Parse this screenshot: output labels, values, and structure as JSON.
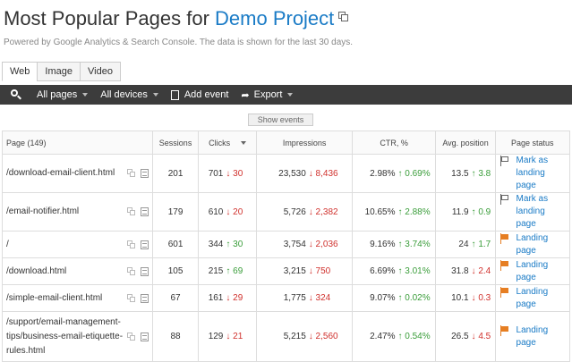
{
  "header": {
    "title_prefix": "Most Popular Pages for ",
    "project_name": "Demo Project",
    "subtitle": "Powered by Google Analytics & Search Console. The data is shown for the last 30 days."
  },
  "tabs": [
    {
      "label": "Web",
      "active": true
    },
    {
      "label": "Image",
      "active": false
    },
    {
      "label": "Video",
      "active": false
    }
  ],
  "toolbar": {
    "pages_filter": "All pages",
    "devices_filter": "All devices",
    "add_event": "Add event",
    "export": "Export"
  },
  "show_events_label": "Show events",
  "table": {
    "columns": [
      "Page (149)",
      "Sessions",
      "Clicks",
      "Impressions",
      "CTR, %",
      "Avg. position",
      "Page status"
    ],
    "rows": [
      {
        "page": "/download-email-client.html",
        "sessions": "201",
        "clicks": "701",
        "clicks_delta": "↓ 30",
        "clicks_dir": "down",
        "impressions": "23,530",
        "impr_delta": "↓ 8,436",
        "impr_dir": "down",
        "ctr": "2.98%",
        "ctr_delta": "↑ 0.69%",
        "ctr_dir": "up",
        "pos": "13.5",
        "pos_delta": "↑ 3.8",
        "pos_dir": "up",
        "status": "Mark as landing page",
        "landing": false
      },
      {
        "page": "/email-notifier.html",
        "sessions": "179",
        "clicks": "610",
        "clicks_delta": "↓ 20",
        "clicks_dir": "down",
        "impressions": "5,726",
        "impr_delta": "↓ 2,382",
        "impr_dir": "down",
        "ctr": "10.65%",
        "ctr_delta": "↑ 2.88%",
        "ctr_dir": "up",
        "pos": "11.9",
        "pos_delta": "↑ 0.9",
        "pos_dir": "up",
        "status": "Mark as landing page",
        "landing": false
      },
      {
        "page": "/",
        "sessions": "601",
        "clicks": "344",
        "clicks_delta": "↑ 30",
        "clicks_dir": "up",
        "impressions": "3,754",
        "impr_delta": "↓ 2,036",
        "impr_dir": "down",
        "ctr": "9.16%",
        "ctr_delta": "↑ 3.74%",
        "ctr_dir": "up",
        "pos": "24",
        "pos_delta": "↑ 1.7",
        "pos_dir": "up",
        "status": "Landing page",
        "landing": true
      },
      {
        "page": "/download.html",
        "sessions": "105",
        "clicks": "215",
        "clicks_delta": "↑ 69",
        "clicks_dir": "up",
        "impressions": "3,215",
        "impr_delta": "↓ 750",
        "impr_dir": "down",
        "ctr": "6.69%",
        "ctr_delta": "↑ 3.01%",
        "ctr_dir": "up",
        "pos": "31.8",
        "pos_delta": "↓ 2.4",
        "pos_dir": "down",
        "status": "Landing page",
        "landing": true
      },
      {
        "page": "/simple-email-client.html",
        "sessions": "67",
        "clicks": "161",
        "clicks_delta": "↓ 29",
        "clicks_dir": "down",
        "impressions": "1,775",
        "impr_delta": "↓ 324",
        "impr_dir": "down",
        "ctr": "9.07%",
        "ctr_delta": "↑ 0.02%",
        "ctr_dir": "up",
        "pos": "10.1",
        "pos_delta": "↓ 0.3",
        "pos_dir": "down",
        "status": "Landing page",
        "landing": true
      },
      {
        "page": "/support/email-management-tips/business-email-etiquette-rules.html",
        "sessions": "88",
        "clicks": "129",
        "clicks_delta": "↓ 21",
        "clicks_dir": "down",
        "impressions": "5,215",
        "impr_delta": "↓ 2,560",
        "impr_dir": "down",
        "ctr": "2.47%",
        "ctr_delta": "↑ 0.54%",
        "ctr_dir": "up",
        "pos": "26.5",
        "pos_delta": "↓ 4.5",
        "pos_dir": "down",
        "status": "Landing page",
        "landing": true
      }
    ]
  }
}
